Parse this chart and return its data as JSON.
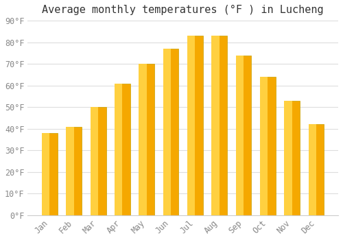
{
  "title": "Average monthly temperatures (°F ) in Lucheng",
  "months": [
    "Jan",
    "Feb",
    "Mar",
    "Apr",
    "May",
    "Jun",
    "Jul",
    "Aug",
    "Sep",
    "Oct",
    "Nov",
    "Dec"
  ],
  "values": [
    38,
    41,
    50,
    61,
    70,
    77,
    83,
    83,
    74,
    64,
    53,
    42
  ],
  "bar_color_outer": "#F5A800",
  "bar_color_inner": "#FFD040",
  "bar_edge_color": "#C8A000",
  "background_color": "#FFFFFF",
  "plot_bg_color": "#FFFFFF",
  "grid_color": "#DDDDDD",
  "yticks": [
    0,
    10,
    20,
    30,
    40,
    50,
    60,
    70,
    80,
    90
  ],
  "ylim": [
    0,
    90
  ],
  "tick_label_color": "#888888",
  "title_color": "#333333",
  "title_fontsize": 11,
  "tick_fontsize": 8.5
}
